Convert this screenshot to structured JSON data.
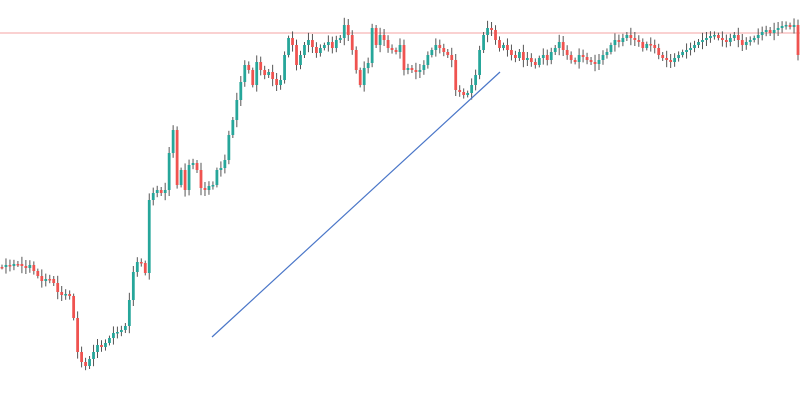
{
  "chart_data": {
    "type": "candlestick",
    "title": "",
    "xlabel": "",
    "ylabel": "",
    "grid": false,
    "legend": "none",
    "colors": {
      "up": "#26a69a",
      "down": "#ef5350",
      "wick": "#555555",
      "trendline": "#4a76c8",
      "level_line": "#f5a3a3",
      "background": "#ffffff"
    },
    "ylim": [
      0,
      419
    ],
    "xlim": [
      0,
      200
    ],
    "points": [
      267,
      265,
      266,
      264,
      264,
      266,
      268,
      265,
      271,
      276,
      281,
      279,
      279,
      283,
      292,
      295,
      294,
      296,
      318,
      352,
      362,
      366,
      359,
      352,
      345,
      347,
      343,
      338,
      333,
      332,
      330,
      326,
      300,
      272,
      262,
      263,
      273,
      200,
      193,
      190,
      193,
      190,
      153,
      130,
      185,
      170,
      190,
      165,
      163,
      170,
      188,
      190,
      186,
      185,
      170,
      168,
      160,
      135,
      120,
      100,
      82,
      65,
      70,
      85,
      62,
      70,
      75,
      72,
      79,
      85,
      80,
      55,
      38,
      45,
      65,
      55,
      45,
      40,
      47,
      53,
      48,
      45,
      42,
      48,
      40,
      38,
      25,
      35,
      50,
      70,
      85,
      68,
      63,
      28,
      45,
      35,
      40,
      48,
      50,
      52,
      45,
      70,
      68,
      70,
      72,
      70,
      65,
      55,
      50,
      45,
      48,
      52,
      55,
      60,
      90,
      92,
      95,
      93,
      85,
      75,
      50,
      35,
      28,
      30,
      40,
      48,
      45,
      50,
      55,
      58,
      52,
      60,
      58,
      62,
      65,
      58,
      55,
      60,
      52,
      48,
      42,
      50,
      55,
      60,
      62,
      55,
      57,
      60,
      62,
      64,
      60,
      55,
      52,
      45,
      40,
      42,
      38,
      35,
      38,
      40,
      42,
      48,
      44,
      45,
      48,
      55,
      58,
      60,
      62,
      58,
      55,
      52,
      50,
      48,
      45,
      42,
      40,
      38,
      36,
      35,
      38,
      40,
      42,
      38,
      35,
      40,
      45,
      42,
      40,
      38,
      35,
      32,
      30,
      33,
      30,
      28,
      26,
      25,
      27,
      25,
      55
    ],
    "trendline": {
      "start": [
        53,
        337
      ],
      "end": [
        125,
        72
      ]
    },
    "level_line": {
      "y": 33
    }
  }
}
